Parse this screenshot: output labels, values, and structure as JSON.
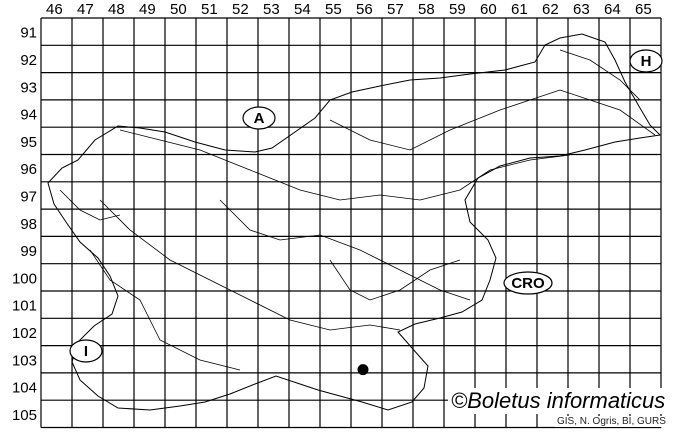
{
  "grid": {
    "columns": [
      "46",
      "47",
      "48",
      "49",
      "50",
      "51",
      "52",
      "53",
      "54",
      "55",
      "56",
      "57",
      "58",
      "59",
      "60",
      "61",
      "62",
      "63",
      "64",
      "65"
    ],
    "rows": [
      "91",
      "92",
      "93",
      "94",
      "95",
      "96",
      "97",
      "98",
      "99",
      "100",
      "101",
      "102",
      "103",
      "104",
      "105"
    ]
  },
  "country_labels": [
    {
      "text": "A",
      "col": "52",
      "row": "94"
    },
    {
      "text": "H",
      "col": "65",
      "row": "92"
    },
    {
      "text": "CRO",
      "col": "61",
      "row": "100"
    },
    {
      "text": "I",
      "col": "47",
      "row": "103"
    }
  ],
  "records": [
    {
      "col": "56",
      "row": "103"
    }
  ],
  "credit": "©Boletus informaticus",
  "source": "GIS, N. Ogris, BI, GURS",
  "colors": {
    "lines": "#000000",
    "record": "#000000"
  }
}
